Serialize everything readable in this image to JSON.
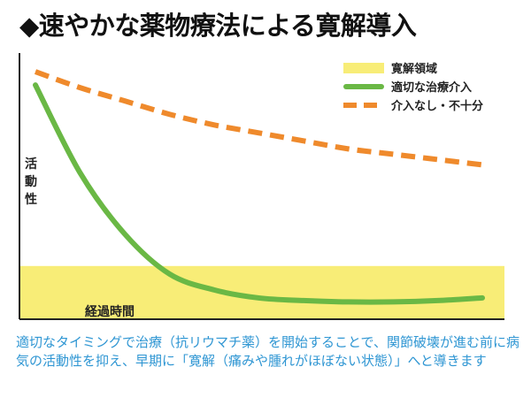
{
  "title": "◆速やかな薬物療法による寛解導入",
  "chart_data": {
    "type": "line",
    "title": "速やかな薬物療法による寛解導入",
    "xlabel": "経過時間",
    "ylabel": "活動性",
    "x": [
      0,
      1,
      2,
      3,
      4,
      5,
      6,
      7,
      8,
      9,
      10
    ],
    "xlim": [
      0,
      10
    ],
    "ylim": [
      0,
      100
    ],
    "series": [
      {
        "name": "適切な治療介入",
        "style": "solid",
        "color": "#6ab845",
        "values": [
          88,
          55,
          32,
          17,
          11,
          8,
          7,
          6.5,
          6.5,
          7,
          8
        ]
      },
      {
        "name": "介入なし・不十分",
        "style": "dashed",
        "color": "#ef8a2c",
        "values": [
          93,
          87,
          82,
          77,
          73,
          70,
          67,
          64,
          62,
          60,
          58
        ]
      }
    ],
    "bands": [
      {
        "name": "寛解領域",
        "color": "#f8ed77",
        "y_range": [
          0,
          20
        ]
      }
    ],
    "legend": {
      "position": "top-right",
      "items": [
        "寛解領域",
        "適切な治療介入",
        "介入なし・不十分"
      ]
    },
    "grid": false
  },
  "caption": "適切なタイミングで治療（抗リウマチ薬）を開始することで、関節破壊が進む前に病気の活動性を抑え、早期に「寛解（痛みや腫れがほぼない状態）」へと導きます"
}
